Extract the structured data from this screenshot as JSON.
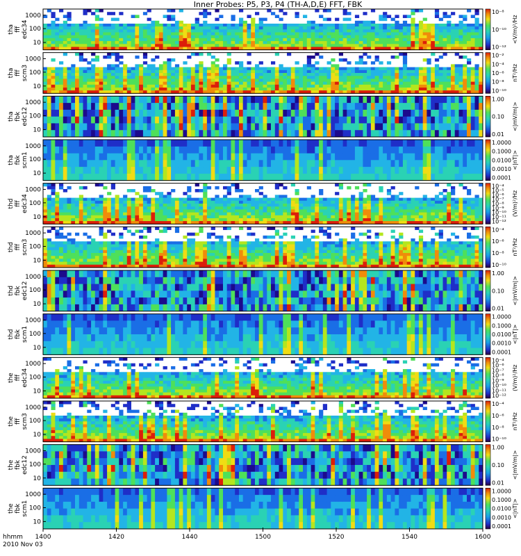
{
  "title": "Inner Probes: P5, P3, P4 (TH-A,D,E) FFT, FBK",
  "footer": {
    "row1_label": "hhmm",
    "row2_label": "2010 Nov 03"
  },
  "x_ticks": [
    "1400",
    "1420",
    "1440",
    "1500",
    "1520",
    "1540",
    "1600"
  ],
  "chart_data": {
    "type": "heatmap",
    "title": "Inner Probes: P5, P3, P4 (TH-A,D,E) FFT, FBK",
    "x_axis": {
      "label": "hhmm",
      "date": "2010 Nov 03",
      "range": [
        "1400",
        "1600"
      ],
      "ticks": [
        "1400",
        "1420",
        "1440",
        "1500",
        "1520",
        "1540",
        "1600"
      ]
    },
    "panels": [
      {
        "ylabel": [
          "tha",
          "fff",
          "edc34"
        ],
        "yticks": [
          "1000",
          "100",
          "10"
        ],
        "cb_label": "<V/m)²/Hz",
        "cb_ticks": [
          "10⁻⁸",
          "10⁻¹⁰",
          "10⁻¹²"
        ]
      },
      {
        "ylabel": [
          "tha",
          "fff",
          "scm3"
        ],
        "yticks": [
          "1000",
          "100",
          "10"
        ],
        "cb_label": "nT²/Hz",
        "cb_ticks": [
          "10⁻²",
          "10⁻⁴",
          "10⁻⁶",
          "10⁻⁸",
          "10⁻¹⁰"
        ]
      },
      {
        "ylabel": [
          "tha",
          "fbk",
          "edc12"
        ],
        "yticks": [
          "1000",
          "100",
          "10"
        ],
        "cb_label": "<|mV/m|>",
        "cb_ticks": [
          "1.00",
          "0.10",
          "0.01"
        ]
      },
      {
        "ylabel": [
          "tha",
          "fbk",
          "scm1"
        ],
        "yticks": [
          "1000",
          "100",
          "10"
        ],
        "cb_label": "<|nT|>",
        "cb_ticks": [
          "1.0000",
          "0.1000",
          "0.0100",
          "0.0010",
          "0.0001"
        ]
      },
      {
        "ylabel": [
          "thd",
          "fff",
          "edc34"
        ],
        "yticks": [
          "1000",
          "100",
          "10"
        ],
        "cb_label": "(V/m)²/Hz",
        "cb_ticks": [
          "10⁻⁴",
          "10⁻⁵",
          "10⁻⁶",
          "10⁻⁷",
          "10⁻⁸",
          "10⁻⁹",
          "10⁻¹⁰",
          "10⁻¹¹",
          "10⁻¹²"
        ]
      },
      {
        "ylabel": [
          "thd",
          "fff",
          "scm3"
        ],
        "yticks": [
          "1000",
          "100",
          "10"
        ],
        "cb_label": "nT²/Hz",
        "cb_ticks": [
          "10⁻⁴",
          "10⁻⁶",
          "10⁻⁸",
          "10⁻¹⁰"
        ]
      },
      {
        "ylabel": [
          "thd",
          "fbk",
          "edc12"
        ],
        "yticks": [
          "1000",
          "100",
          "10"
        ],
        "cb_label": "<|mV/m|>",
        "cb_ticks": [
          "1.00",
          "0.10",
          "0.01"
        ]
      },
      {
        "ylabel": [
          "thd",
          "fbk",
          "scm1"
        ],
        "yticks": [
          "1000",
          "100",
          "10"
        ],
        "cb_label": "<|nT|>",
        "cb_ticks": [
          "1.0000",
          "0.1000",
          "0.0100",
          "0.0010",
          "0.0001"
        ]
      },
      {
        "ylabel": [
          "the",
          "fff",
          "edc34"
        ],
        "yticks": [
          "1000",
          "100",
          "10"
        ],
        "cb_label": "(V/m)²/Hz",
        "cb_ticks": [
          "10⁻⁴",
          "10⁻⁶",
          "10⁻⁷",
          "10⁻⁸",
          "10⁻⁹",
          "10⁻¹⁰",
          "10⁻¹¹",
          "10⁻¹²"
        ]
      },
      {
        "ylabel": [
          "the",
          "fff",
          "scm3"
        ],
        "yticks": [
          "1000",
          "100",
          "10"
        ],
        "cb_label": "nT²/Hz",
        "cb_ticks": [
          "10⁻⁴",
          "10⁻⁶",
          "10⁻⁸",
          "10⁻¹⁰"
        ]
      },
      {
        "ylabel": [
          "the",
          "fbk",
          "edc12"
        ],
        "yticks": [
          "1000",
          "100",
          "10"
        ],
        "cb_label": "<|mV/m|>",
        "cb_ticks": [
          "1.00",
          "0.10",
          "0.01"
        ]
      },
      {
        "ylabel": [
          "the",
          "fbk",
          "scm1"
        ],
        "yticks": [
          "1000",
          "100",
          "10"
        ],
        "cb_label": "<|nT|>",
        "cb_ticks": [
          "1.0000",
          "0.1000",
          "0.0100",
          "0.0010",
          "0.0001"
        ]
      }
    ],
    "colorscale": [
      "#000000",
      "#2a0040",
      "#1c0a8c",
      "#1f2ec8",
      "#1a6ee6",
      "#22b4e6",
      "#2ad2b4",
      "#4ee05a",
      "#b4e61e",
      "#f0dc14",
      "#f08c0a",
      "#dc1e0a"
    ]
  }
}
